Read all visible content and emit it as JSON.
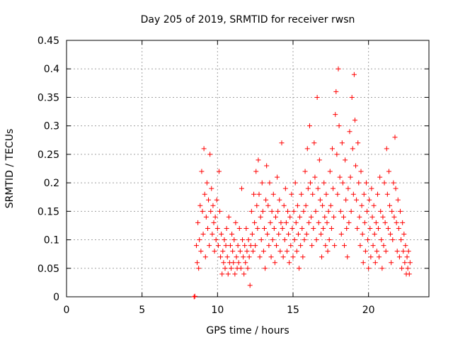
{
  "chart_data": {
    "type": "scatter",
    "title": "Day 205 of 2019, SRMTID for receiver rwsn",
    "xlabel": "GPS time / hours",
    "ylabel": "SRMTID / TECUs",
    "xlim": [
      0,
      24
    ],
    "ylim": [
      0,
      0.45
    ],
    "xticks": [
      0,
      5,
      10,
      15,
      20
    ],
    "yticks": [
      0,
      0.05,
      0.1,
      0.15,
      0.2,
      0.25,
      0.3,
      0.35,
      0.4,
      0.45
    ],
    "xtick_labels": [
      "0",
      "5",
      "10",
      "15",
      "20"
    ],
    "ytick_labels": [
      "0",
      "0.05",
      "0.1",
      "0.15",
      "0.2",
      "0.25",
      "0.3",
      "0.35",
      "0.4",
      "0.45"
    ],
    "grid": true,
    "marker": "+",
    "color": "#ff0000",
    "series": [
      {
        "name": "SRMTID",
        "points": [
          [
            8.45,
            0.0
          ],
          [
            8.5,
            0.001
          ],
          [
            8.6,
            0.09
          ],
          [
            8.65,
            0.06
          ],
          [
            8.7,
            0.13
          ],
          [
            8.75,
            0.05
          ],
          [
            8.8,
            0.1
          ],
          [
            8.85,
            0.16
          ],
          [
            8.9,
            0.08
          ],
          [
            8.95,
            0.22
          ],
          [
            9.0,
            0.15
          ],
          [
            9.05,
            0.11
          ],
          [
            9.1,
            0.26
          ],
          [
            9.15,
            0.18
          ],
          [
            9.2,
            0.07
          ],
          [
            9.25,
            0.14
          ],
          [
            9.3,
            0.2
          ],
          [
            9.35,
            0.12
          ],
          [
            9.4,
            0.17
          ],
          [
            9.45,
            0.09
          ],
          [
            9.5,
            0.25
          ],
          [
            9.55,
            0.15
          ],
          [
            9.6,
            0.19
          ],
          [
            9.65,
            0.11
          ],
          [
            9.7,
            0.16
          ],
          [
            9.75,
            0.13
          ],
          [
            9.8,
            0.08
          ],
          [
            9.85,
            0.14
          ],
          [
            9.9,
            0.1
          ],
          [
            9.95,
            0.17
          ],
          [
            10.0,
            0.12
          ],
          [
            10.05,
            0.09
          ],
          [
            10.1,
            0.22
          ],
          [
            10.15,
            0.15
          ],
          [
            10.2,
            0.07
          ],
          [
            10.25,
            0.11
          ],
          [
            10.3,
            0.04
          ],
          [
            10.35,
            0.08
          ],
          [
            10.4,
            0.06
          ],
          [
            10.45,
            0.1
          ],
          [
            10.5,
            0.05
          ],
          [
            10.55,
            0.09
          ],
          [
            10.6,
            0.12
          ],
          [
            10.65,
            0.07
          ],
          [
            10.7,
            0.04
          ],
          [
            10.75,
            0.14
          ],
          [
            10.8,
            0.06
          ],
          [
            10.85,
            0.09
          ],
          [
            10.9,
            0.05
          ],
          [
            10.95,
            0.11
          ],
          [
            11.0,
            0.08
          ],
          [
            11.05,
            0.06
          ],
          [
            11.1,
            0.1
          ],
          [
            11.15,
            0.04
          ],
          [
            11.2,
            0.13
          ],
          [
            11.25,
            0.07
          ],
          [
            11.3,
            0.05
          ],
          [
            11.35,
            0.09
          ],
          [
            11.4,
            0.06
          ],
          [
            11.45,
            0.12
          ],
          [
            11.5,
            0.08
          ],
          [
            11.55,
            0.05
          ],
          [
            11.6,
            0.19
          ],
          [
            11.65,
            0.1
          ],
          [
            11.7,
            0.07
          ],
          [
            11.75,
            0.04
          ],
          [
            11.8,
            0.09
          ],
          [
            11.85,
            0.06
          ],
          [
            11.9,
            0.12
          ],
          [
            11.95,
            0.08
          ],
          [
            12.0,
            0.05
          ],
          [
            12.05,
            0.1
          ],
          [
            12.1,
            0.07
          ],
          [
            12.15,
            0.02
          ],
          [
            12.2,
            0.09
          ],
          [
            12.25,
            0.15
          ],
          [
            12.3,
            0.11
          ],
          [
            12.35,
            0.08
          ],
          [
            12.4,
            0.18
          ],
          [
            12.45,
            0.13
          ],
          [
            12.5,
            0.09
          ],
          [
            12.55,
            0.22
          ],
          [
            12.6,
            0.16
          ],
          [
            12.65,
            0.12
          ],
          [
            12.7,
            0.24
          ],
          [
            12.75,
            0.18
          ],
          [
            12.8,
            0.07
          ],
          [
            12.85,
            0.14
          ],
          [
            12.9,
            0.1
          ],
          [
            12.95,
            0.2
          ],
          [
            13.0,
            0.15
          ],
          [
            13.05,
            0.08
          ],
          [
            13.1,
            0.12
          ],
          [
            13.15,
            0.05
          ],
          [
            13.2,
            0.17
          ],
          [
            13.25,
            0.23
          ],
          [
            13.3,
            0.11
          ],
          [
            13.35,
            0.16
          ],
          [
            13.4,
            0.09
          ],
          [
            13.45,
            0.2
          ],
          [
            13.5,
            0.13
          ],
          [
            13.55,
            0.07
          ],
          [
            13.6,
            0.15
          ],
          [
            13.65,
            0.1
          ],
          [
            13.7,
            0.18
          ],
          [
            13.75,
            0.12
          ],
          [
            13.8,
            0.06
          ],
          [
            13.85,
            0.14
          ],
          [
            13.9,
            0.09
          ],
          [
            13.95,
            0.21
          ],
          [
            14.0,
            0.15
          ],
          [
            14.05,
            0.11
          ],
          [
            14.1,
            0.17
          ],
          [
            14.15,
            0.08
          ],
          [
            14.2,
            0.13
          ],
          [
            14.25,
            0.27
          ],
          [
            14.3,
            0.12
          ],
          [
            14.35,
            0.07
          ],
          [
            14.4,
            0.16
          ],
          [
            14.45,
            0.1
          ],
          [
            14.5,
            0.19
          ],
          [
            14.55,
            0.13
          ],
          [
            14.6,
            0.08
          ],
          [
            14.65,
            0.15
          ],
          [
            14.7,
            0.11
          ],
          [
            14.75,
            0.06
          ],
          [
            14.8,
            0.14
          ],
          [
            14.85,
            0.09
          ],
          [
            14.9,
            0.18
          ],
          [
            14.95,
            0.12
          ],
          [
            15.0,
            0.07
          ],
          [
            15.05,
            0.15
          ],
          [
            15.1,
            0.1
          ],
          [
            15.15,
            0.2
          ],
          [
            15.2,
            0.13
          ],
          [
            15.25,
            0.08
          ],
          [
            15.3,
            0.16
          ],
          [
            15.35,
            0.11
          ],
          [
            15.4,
            0.05
          ],
          [
            15.45,
            0.14
          ],
          [
            15.5,
            0.09
          ],
          [
            15.55,
            0.18
          ],
          [
            15.6,
            0.12
          ],
          [
            15.65,
            0.07
          ],
          [
            15.7,
            0.15
          ],
          [
            15.75,
            0.1
          ],
          [
            15.8,
            0.22
          ],
          [
            15.85,
            0.16
          ],
          [
            15.9,
            0.11
          ],
          [
            15.95,
            0.26
          ],
          [
            16.0,
            0.19
          ],
          [
            16.05,
            0.13
          ],
          [
            16.1,
            0.3
          ],
          [
            16.15,
            0.2
          ],
          [
            16.2,
            0.14
          ],
          [
            16.25,
            0.09
          ],
          [
            16.3,
            0.18
          ],
          [
            16.35,
            0.12
          ],
          [
            16.4,
            0.27
          ],
          [
            16.45,
            0.21
          ],
          [
            16.5,
            0.15
          ],
          [
            16.55,
            0.1
          ],
          [
            16.6,
            0.35
          ],
          [
            16.65,
            0.19
          ],
          [
            16.7,
            0.13
          ],
          [
            16.75,
            0.24
          ],
          [
            16.8,
            0.17
          ],
          [
            16.85,
            0.11
          ],
          [
            16.9,
            0.07
          ],
          [
            16.95,
            0.16
          ],
          [
            17.0,
            0.12
          ],
          [
            17.05,
            0.2
          ],
          [
            17.1,
            0.14
          ],
          [
            17.15,
            0.09
          ],
          [
            17.2,
            0.18
          ],
          [
            17.25,
            0.13
          ],
          [
            17.3,
            0.08
          ],
          [
            17.35,
            0.15
          ],
          [
            17.4,
            0.1
          ],
          [
            17.45,
            0.22
          ],
          [
            17.5,
            0.16
          ],
          [
            17.55,
            0.12
          ],
          [
            17.6,
            0.26
          ],
          [
            17.65,
            0.19
          ],
          [
            17.7,
            0.14
          ],
          [
            17.75,
            0.09
          ],
          [
            17.8,
            0.32
          ],
          [
            17.85,
            0.36
          ],
          [
            17.9,
            0.25
          ],
          [
            17.95,
            0.18
          ],
          [
            18.0,
            0.4
          ],
          [
            18.05,
            0.3
          ],
          [
            18.1,
            0.21
          ],
          [
            18.15,
            0.15
          ],
          [
            18.2,
            0.11
          ],
          [
            18.25,
            0.27
          ],
          [
            18.3,
            0.2
          ],
          [
            18.35,
            0.14
          ],
          [
            18.4,
            0.09
          ],
          [
            18.45,
            0.24
          ],
          [
            18.5,
            0.17
          ],
          [
            18.55,
            0.12
          ],
          [
            18.6,
            0.07
          ],
          [
            18.65,
            0.19
          ],
          [
            18.7,
            0.13
          ],
          [
            18.75,
            0.29
          ],
          [
            18.8,
            0.21
          ],
          [
            18.85,
            0.15
          ],
          [
            18.9,
            0.35
          ],
          [
            18.95,
            0.26
          ],
          [
            19.0,
            0.18
          ],
          [
            19.05,
            0.39
          ],
          [
            19.1,
            0.31
          ],
          [
            19.15,
            0.23
          ],
          [
            19.2,
            0.17
          ],
          [
            19.25,
            0.12
          ],
          [
            19.3,
            0.27
          ],
          [
            19.35,
            0.2
          ],
          [
            19.4,
            0.14
          ],
          [
            19.45,
            0.09
          ],
          [
            19.5,
            0.22
          ],
          [
            19.55,
            0.16
          ],
          [
            19.6,
            0.11
          ],
          [
            19.65,
            0.06
          ],
          [
            19.7,
            0.18
          ],
          [
            19.75,
            0.13
          ],
          [
            19.8,
            0.08
          ],
          [
            19.85,
            0.2
          ],
          [
            19.9,
            0.15
          ],
          [
            19.95,
            0.1
          ],
          [
            20.0,
            0.05
          ],
          [
            20.05,
            0.17
          ],
          [
            20.1,
            0.12
          ],
          [
            20.15,
            0.07
          ],
          [
            20.2,
            0.19
          ],
          [
            20.25,
            0.14
          ],
          [
            20.3,
            0.09
          ],
          [
            20.35,
            0.16
          ],
          [
            20.4,
            0.11
          ],
          [
            20.45,
            0.06
          ],
          [
            20.5,
            0.13
          ],
          [
            20.55,
            0.08
          ],
          [
            20.6,
            0.18
          ],
          [
            20.65,
            0.12
          ],
          [
            20.7,
            0.07
          ],
          [
            20.75,
            0.21
          ],
          [
            20.8,
            0.15
          ],
          [
            20.85,
            0.1
          ],
          [
            20.9,
            0.05
          ],
          [
            20.95,
            0.14
          ],
          [
            21.0,
            0.09
          ],
          [
            21.05,
            0.2
          ],
          [
            21.1,
            0.13
          ],
          [
            21.15,
            0.08
          ],
          [
            21.2,
            0.26
          ],
          [
            21.25,
            0.18
          ],
          [
            21.3,
            0.12
          ],
          [
            21.35,
            0.22
          ],
          [
            21.4,
            0.16
          ],
          [
            21.45,
            0.11
          ],
          [
            21.5,
            0.06
          ],
          [
            21.55,
            0.15
          ],
          [
            21.6,
            0.1
          ],
          [
            21.65,
            0.2
          ],
          [
            21.7,
            0.14
          ],
          [
            21.75,
            0.28
          ],
          [
            21.8,
            0.19
          ],
          [
            21.85,
            0.13
          ],
          [
            21.9,
            0.08
          ],
          [
            21.95,
            0.17
          ],
          [
            22.0,
            0.12
          ],
          [
            22.05,
            0.07
          ],
          [
            22.1,
            0.15
          ],
          [
            22.15,
            0.1
          ],
          [
            22.2,
            0.05
          ],
          [
            22.25,
            0.13
          ],
          [
            22.3,
            0.08
          ],
          [
            22.35,
            0.11
          ],
          [
            22.4,
            0.06
          ],
          [
            22.45,
            0.09
          ],
          [
            22.5,
            0.04
          ],
          [
            22.55,
            0.07
          ],
          [
            22.6,
            0.05
          ],
          [
            22.65,
            0.08
          ],
          [
            22.7,
            0.04
          ],
          [
            22.75,
            0.06
          ]
        ]
      }
    ]
  }
}
